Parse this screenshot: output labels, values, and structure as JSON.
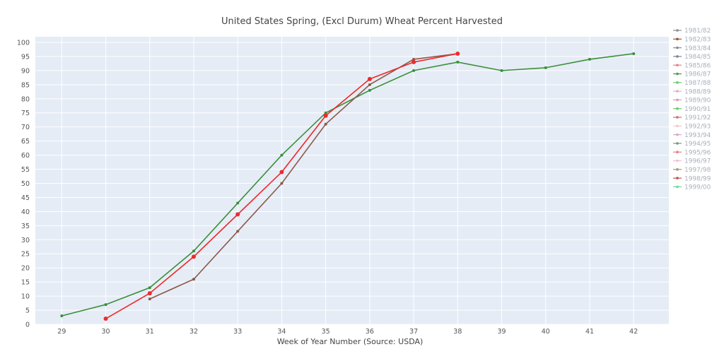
{
  "chart_data": {
    "type": "line",
    "title": "United States Spring, (Excl Durum) Wheat Percent Harvested",
    "xlabel": "Week of Year Number     (Source: USDA)",
    "ylabel": "",
    "xlim": [
      28.4,
      42.8
    ],
    "ylim": [
      0,
      102
    ],
    "x_ticks": [
      29,
      30,
      31,
      32,
      33,
      34,
      35,
      36,
      37,
      38,
      39,
      40,
      41,
      42
    ],
    "y_ticks": [
      0,
      5,
      10,
      15,
      20,
      25,
      30,
      35,
      40,
      45,
      50,
      55,
      60,
      65,
      70,
      75,
      80,
      85,
      90,
      95,
      100
    ],
    "grid": true,
    "legend_position": "right",
    "legend_entries": [
      {
        "name": "1981/82",
        "color": "#8c8c8c"
      },
      {
        "name": "1982/83",
        "color": "#a0522d"
      },
      {
        "name": "1983/84",
        "color": "#8c8c8c"
      },
      {
        "name": "1984/85",
        "color": "#7f7f9f"
      },
      {
        "name": "1985/86",
        "color": "#e88080"
      },
      {
        "name": "1986/87",
        "color": "#4a9a4a"
      },
      {
        "name": "1987/88",
        "color": "#66cc66"
      },
      {
        "name": "1988/89",
        "color": "#e0b0c0"
      },
      {
        "name": "1989/90",
        "color": "#d898b8"
      },
      {
        "name": "1990/91",
        "color": "#66cc66"
      },
      {
        "name": "1991/92",
        "color": "#d46a6a"
      },
      {
        "name": "1992/93",
        "color": "#f0c8d0"
      },
      {
        "name": "1993/94",
        "color": "#d8a8c8"
      },
      {
        "name": "1994/95",
        "color": "#7a9a7a"
      },
      {
        "name": "1995/96",
        "color": "#e88080"
      },
      {
        "name": "1996/97",
        "color": "#f0c0d0"
      },
      {
        "name": "1997/98",
        "color": "#9a9a7a"
      },
      {
        "name": "1998/99",
        "color": "#c05050"
      },
      {
        "name": "1999/00",
        "color": "#66dd99"
      }
    ],
    "series": [
      {
        "color": "#3a8f3a",
        "points": [
          [
            29,
            3
          ],
          [
            30,
            7
          ],
          [
            31,
            13
          ],
          [
            32,
            26
          ],
          [
            33,
            43
          ],
          [
            34,
            60
          ],
          [
            35,
            75
          ],
          [
            36,
            83
          ],
          [
            37,
            90
          ],
          [
            38,
            93
          ],
          [
            39,
            90
          ],
          [
            40,
            91
          ],
          [
            41,
            94
          ],
          [
            42,
            96
          ]
        ]
      },
      {
        "color": "#8b5a4a",
        "points": [
          [
            31,
            9
          ],
          [
            32,
            16
          ],
          [
            33,
            33
          ],
          [
            34,
            50
          ],
          [
            35,
            71
          ],
          [
            36,
            85
          ],
          [
            37,
            94
          ],
          [
            38,
            96
          ]
        ]
      },
      {
        "color": "#ee2a2a",
        "points": [
          [
            30,
            2
          ],
          [
            31,
            11
          ],
          [
            32,
            24
          ],
          [
            33,
            39
          ],
          [
            34,
            54
          ],
          [
            35,
            74
          ],
          [
            36,
            87
          ],
          [
            37,
            93
          ],
          [
            38,
            96
          ]
        ]
      }
    ]
  }
}
